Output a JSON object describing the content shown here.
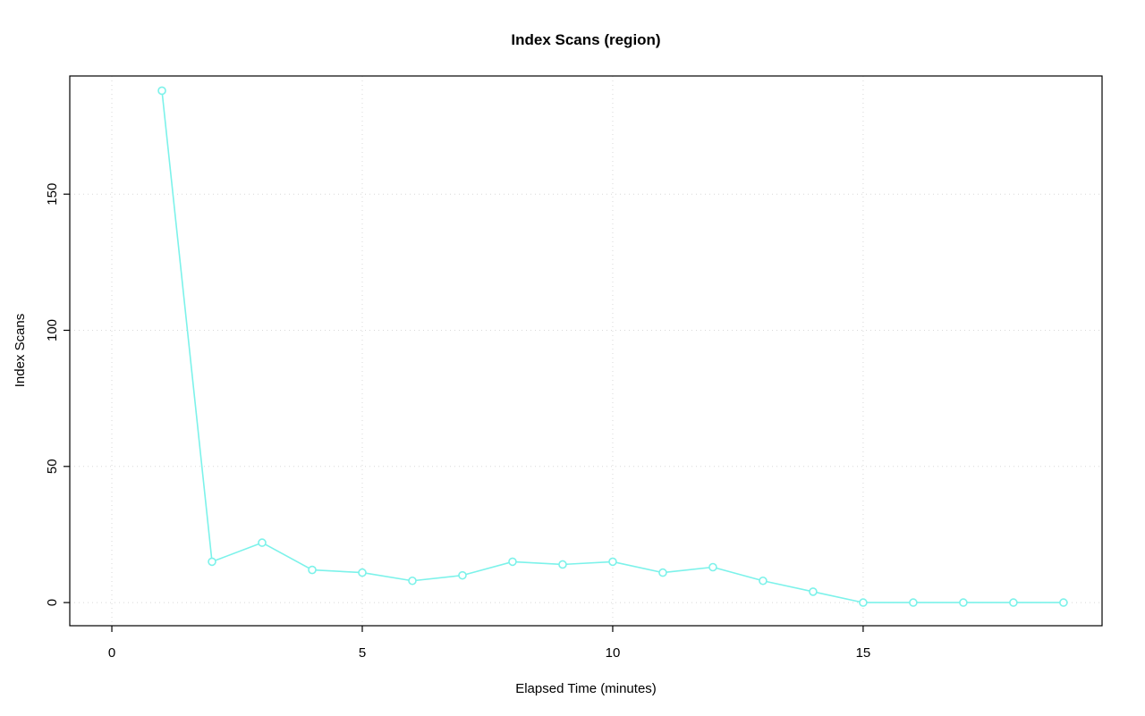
{
  "chart_data": {
    "type": "line",
    "title": "Index Scans (region)",
    "xlabel": "Elapsed Time (minutes)",
    "ylabel": "Index Scans",
    "x": [
      1,
      2,
      3,
      4,
      5,
      6,
      7,
      8,
      9,
      10,
      11,
      12,
      13,
      14,
      15,
      16,
      17,
      18,
      19
    ],
    "y": [
      188,
      15,
      22,
      12,
      11,
      8,
      10,
      15,
      14,
      15,
      11,
      13,
      8,
      4,
      0,
      0,
      0,
      0,
      0
    ],
    "xticks": [
      0,
      5,
      10,
      15
    ],
    "yticks": [
      0,
      50,
      100,
      150
    ],
    "xlim": [
      -0.84,
      19.77
    ],
    "ylim": [
      -8.5,
      193.4
    ],
    "grid": true,
    "legend": "none",
    "marker": "open-circle",
    "line_color": "#7CF2EA",
    "grid_color": "#D8D8D8",
    "axis_color": "#000000",
    "background": "#FFFFFF"
  }
}
